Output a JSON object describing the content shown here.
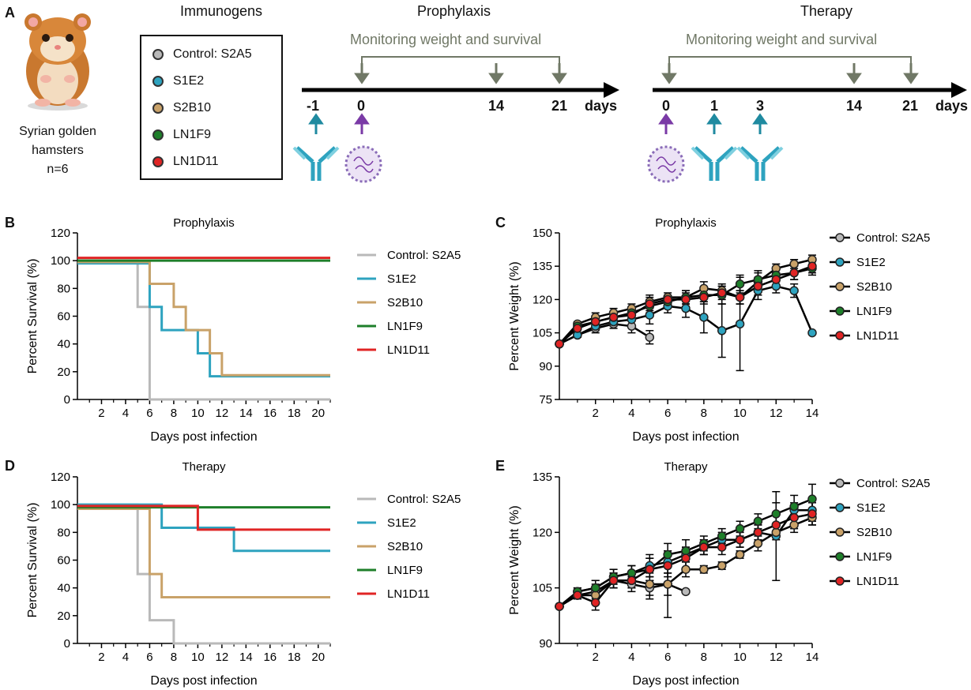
{
  "panelA": {
    "letter": "A",
    "animal": {
      "line1": "Syrian golden",
      "line2": "hamsters",
      "line3": "n=6"
    },
    "immunogens_title": "Immunogens",
    "prophylaxis_title": "Prophylaxis",
    "therapy_title": "Therapy",
    "monitoring_label": "Monitoring weight and survival",
    "legend": [
      {
        "label": "Control: S2A5",
        "color": "#b9b9b9"
      },
      {
        "label": "S1E2",
        "color": "#2ea3bf"
      },
      {
        "label": "S2B10",
        "color": "#c9a269"
      },
      {
        "label": "LN1F9",
        "color": "#1e7f2a"
      },
      {
        "label": "LN1D11",
        "color": "#e02424"
      }
    ],
    "prophylaxis_days": [
      "-1",
      "0",
      "14",
      "21"
    ],
    "therapy_days": [
      "0",
      "1",
      "3",
      "14",
      "21"
    ],
    "days_label": "days",
    "colors": {
      "arrow_grey": "#707866",
      "arrow_teal": "#1f8aa0",
      "arrow_purple": "#7a3aa6"
    }
  },
  "chart_data": [
    {
      "panel": "B",
      "type": "line",
      "step": true,
      "title": "Prophylaxis",
      "xlabel": "Days post infection",
      "ylabel": "Percent Survival (%)",
      "xlim": [
        0,
        21
      ],
      "ylim": [
        0,
        120
      ],
      "xticks": [
        2,
        4,
        6,
        8,
        10,
        12,
        14,
        16,
        18,
        20
      ],
      "yticks": [
        0,
        20,
        40,
        60,
        80,
        100,
        120
      ],
      "series": [
        {
          "name": "Control: S2A5",
          "color": "#b9b9b9",
          "x": [
            0,
            5,
            5,
            6,
            6,
            21
          ],
          "y": [
            100,
            100,
            66.7,
            66.7,
            0,
            0
          ]
        },
        {
          "name": "S1E2",
          "color": "#2ea3bf",
          "x": [
            0,
            6,
            6,
            7,
            7,
            10,
            10,
            11,
            11,
            21
          ],
          "y": [
            98,
            98,
            66.7,
            66.7,
            50,
            50,
            33.3,
            33.3,
            16.7,
            16.7
          ]
        },
        {
          "name": "S2B10",
          "color": "#c9a269",
          "x": [
            0,
            6,
            6,
            8,
            8,
            9,
            9,
            11,
            11,
            12,
            12,
            21
          ],
          "y": [
            99,
            99,
            83.3,
            83.3,
            66.7,
            66.7,
            50,
            50,
            33.3,
            33.3,
            17.5,
            17.5
          ]
        },
        {
          "name": "LN1F9",
          "color": "#1e7f2a",
          "x": [
            0,
            21
          ],
          "y": [
            100,
            100
          ]
        },
        {
          "name": "LN1D11",
          "color": "#e02424",
          "x": [
            0,
            21
          ],
          "y": [
            102,
            102
          ]
        }
      ]
    },
    {
      "panel": "C",
      "type": "line",
      "title": "Prophylaxis",
      "xlabel": "Days post infection",
      "ylabel": "Percent Weight (%)",
      "xlim": [
        0,
        14
      ],
      "ylim": [
        75,
        150
      ],
      "xticks": [
        2,
        4,
        6,
        8,
        10,
        12,
        14
      ],
      "yticks": [
        75,
        90,
        105,
        120,
        135,
        150
      ],
      "series": [
        {
          "name": "Control: S2A5",
          "color": "#b9b9b9",
          "x": [
            0,
            1,
            2,
            3,
            4,
            5
          ],
          "y": [
            100,
            104,
            107,
            109,
            108,
            103
          ],
          "err": [
            0,
            1,
            2,
            2,
            3,
            3
          ]
        },
        {
          "name": "S1E2",
          "color": "#2ea3bf",
          "x": [
            0,
            1,
            2,
            3,
            4,
            5,
            6,
            7,
            8,
            9,
            10,
            11,
            12,
            13,
            14
          ],
          "y": [
            100,
            104,
            108,
            110,
            111,
            113,
            117,
            116,
            112,
            106,
            109,
            124,
            126,
            124,
            105
          ],
          "err": [
            0,
            1,
            2,
            2,
            3,
            4,
            3,
            4,
            7,
            12,
            21,
            4,
            3,
            3,
            0
          ]
        },
        {
          "name": "S2B10",
          "color": "#c9a269",
          "x": [
            0,
            1,
            2,
            3,
            4,
            5,
            6,
            7,
            8,
            9,
            10,
            11,
            12,
            13,
            14
          ],
          "y": [
            100,
            109,
            112,
            114,
            116,
            119,
            121,
            121,
            125,
            124,
            121,
            128,
            134,
            136,
            138
          ],
          "err": [
            0,
            1,
            2,
            2,
            2,
            3,
            2,
            3,
            3,
            3,
            3,
            4,
            2,
            2,
            2
          ]
        },
        {
          "name": "LN1F9",
          "color": "#1e7f2a",
          "x": [
            0,
            1,
            2,
            3,
            4,
            5,
            6,
            7,
            8,
            9,
            10,
            11,
            12,
            13,
            14
          ],
          "y": [
            100,
            108,
            110,
            112,
            114,
            117,
            119,
            121,
            122,
            122,
            127,
            129,
            131,
            132,
            134
          ],
          "err": [
            0,
            1,
            2,
            2,
            2,
            3,
            2,
            3,
            3,
            4,
            4,
            4,
            3,
            3,
            3
          ]
        },
        {
          "name": "LN1D11",
          "color": "#e02424",
          "x": [
            0,
            1,
            2,
            3,
            4,
            5,
            6,
            7,
            8,
            9,
            10,
            11,
            12,
            13,
            14
          ],
          "y": [
            100,
            107,
            110,
            112,
            113,
            118,
            120,
            120,
            121,
            123,
            121,
            126,
            129,
            132,
            135
          ],
          "err": [
            0,
            1,
            2,
            2,
            2,
            3,
            2,
            3,
            3,
            3,
            3,
            4,
            3,
            3,
            3
          ]
        }
      ]
    },
    {
      "panel": "D",
      "type": "line",
      "step": true,
      "title": "Therapy",
      "xlabel": "Days post infection",
      "ylabel": "Percent Survival (%)",
      "xlim": [
        0,
        21
      ],
      "ylim": [
        0,
        120
      ],
      "xticks": [
        2,
        4,
        6,
        8,
        10,
        12,
        14,
        16,
        18,
        20
      ],
      "yticks": [
        0,
        20,
        40,
        60,
        80,
        100,
        120
      ],
      "series": [
        {
          "name": "Control: S2A5",
          "color": "#b9b9b9",
          "x": [
            0,
            5,
            5,
            6,
            6,
            8,
            8,
            21
          ],
          "y": [
            100,
            100,
            50,
            50,
            16.7,
            16.7,
            0,
            0
          ]
        },
        {
          "name": "S1E2",
          "color": "#2ea3bf",
          "x": [
            0,
            7,
            7,
            13,
            13,
            21
          ],
          "y": [
            100,
            100,
            83.3,
            83.3,
            66.7,
            66.7
          ]
        },
        {
          "name": "S2B10",
          "color": "#c9a269",
          "x": [
            0,
            6,
            6,
            7,
            7,
            21
          ],
          "y": [
            97,
            97,
            50,
            50,
            33.3,
            33.3
          ]
        },
        {
          "name": "LN1F9",
          "color": "#1e7f2a",
          "x": [
            0,
            21
          ],
          "y": [
            98,
            98
          ]
        },
        {
          "name": "LN1D11",
          "color": "#e02424",
          "x": [
            0,
            10,
            10,
            21
          ],
          "y": [
            99,
            99,
            82,
            82
          ]
        }
      ]
    },
    {
      "panel": "E",
      "type": "line",
      "title": "Therapy",
      "xlabel": "Days post infection",
      "ylabel": "Percent Weight (%)",
      "xlim": [
        0,
        14
      ],
      "ylim": [
        90,
        135
      ],
      "xticks": [
        2,
        4,
        6,
        8,
        10,
        12,
        14
      ],
      "yticks": [
        90,
        105,
        120,
        135
      ],
      "series": [
        {
          "name": "Control: S2A5",
          "color": "#b9b9b9",
          "x": [
            0,
            1,
            2,
            3,
            4,
            5,
            6,
            7
          ],
          "y": [
            100,
            103,
            104,
            107,
            106,
            105,
            106,
            104
          ],
          "err": [
            0,
            1,
            2,
            2,
            2,
            3,
            3,
            0
          ]
        },
        {
          "name": "S1E2",
          "color": "#2ea3bf",
          "x": [
            0,
            1,
            2,
            3,
            4,
            5,
            6,
            7,
            8,
            9,
            10,
            11,
            12,
            13,
            14
          ],
          "y": [
            100,
            104,
            105,
            108,
            109,
            111,
            112,
            114,
            116,
            118,
            118,
            120,
            119,
            126,
            126
          ],
          "err": [
            0,
            1,
            2,
            2,
            2,
            3,
            3,
            2,
            2,
            2,
            2,
            2,
            12,
            2,
            3
          ]
        },
        {
          "name": "S2B10",
          "color": "#c9a269",
          "x": [
            0,
            1,
            2,
            3,
            4,
            5,
            6,
            7,
            8,
            9,
            10,
            11,
            12,
            13,
            14
          ],
          "y": [
            100,
            103,
            103,
            107,
            107,
            106,
            106,
            110,
            110,
            111,
            114,
            117,
            120,
            122,
            124
          ],
          "err": [
            0,
            1,
            2,
            2,
            2,
            3,
            9,
            2,
            1,
            1,
            1,
            2,
            2,
            2,
            2
          ]
        },
        {
          "name": "LN1F9",
          "color": "#1e7f2a",
          "x": [
            0,
            1,
            2,
            3,
            4,
            5,
            6,
            7,
            8,
            9,
            10,
            11,
            12,
            13,
            14
          ],
          "y": [
            100,
            104,
            105,
            108,
            109,
            110,
            114,
            115,
            117,
            119,
            121,
            123,
            125,
            127,
            129
          ],
          "err": [
            0,
            1,
            2,
            2,
            2,
            3,
            3,
            3,
            2,
            2,
            2,
            2,
            3,
            3,
            4
          ]
        },
        {
          "name": "LN1D11",
          "color": "#e02424",
          "x": [
            0,
            1,
            2,
            3,
            4,
            5,
            6,
            7,
            8,
            9,
            10,
            11,
            12,
            13,
            14
          ],
          "y": [
            100,
            103,
            101,
            107,
            107,
            110,
            111,
            113,
            116,
            116,
            118,
            120,
            122,
            124,
            125
          ],
          "err": [
            0,
            1,
            2,
            2,
            2,
            3,
            3,
            3,
            2,
            2,
            2,
            2,
            3,
            3,
            3
          ]
        }
      ]
    }
  ]
}
